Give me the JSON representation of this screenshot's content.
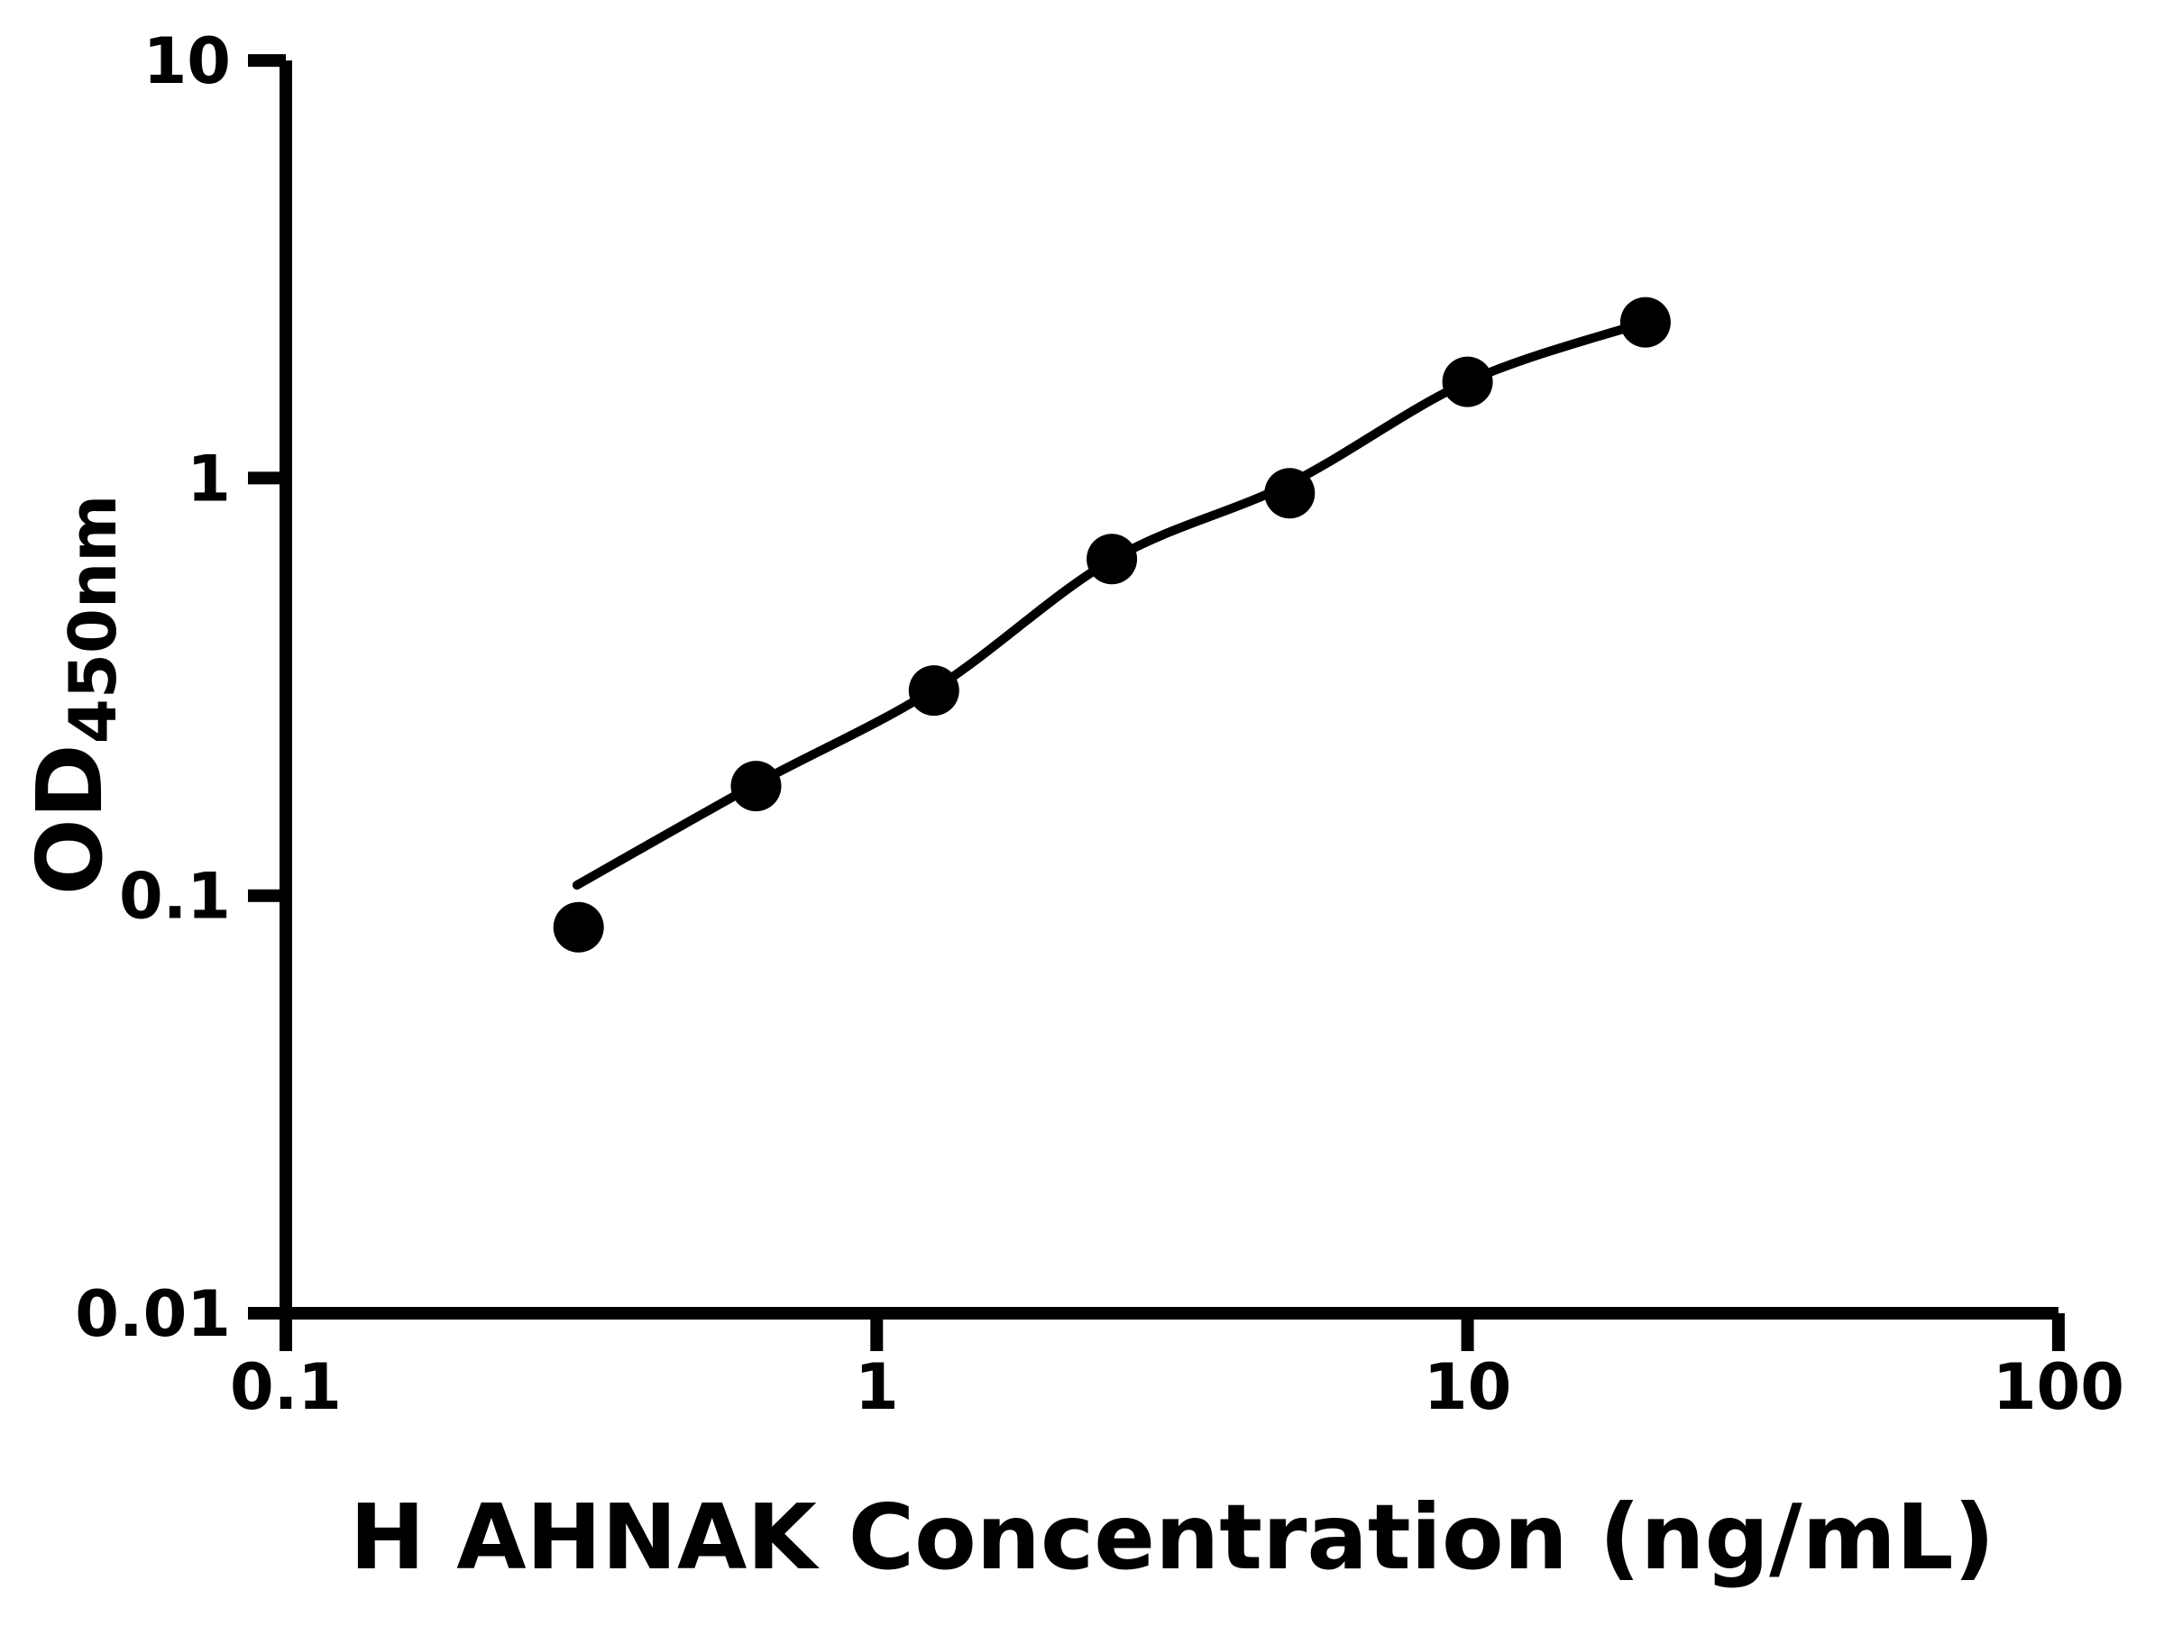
{
  "colors": {
    "foreground": "#000000",
    "background": "#ffffff"
  },
  "chart_data": {
    "type": "scatter",
    "subtype": "log-log standard curve with fitted line",
    "title": "",
    "xlabel": "H AHNAK Concentration (ng/mL)",
    "ylabel_main": "OD",
    "ylabel_sub": "450nm",
    "x_scale": "log",
    "y_scale": "log",
    "xlim": [
      0.1,
      100
    ],
    "ylim": [
      0.01,
      10
    ],
    "grid": false,
    "legend": "none",
    "x_ticks": [
      {
        "value": 0.1,
        "label": "0.1"
      },
      {
        "value": 1,
        "label": "1"
      },
      {
        "value": 10,
        "label": "10"
      },
      {
        "value": 100,
        "label": "100"
      }
    ],
    "y_ticks": [
      {
        "value": 0.01,
        "label": "0.01"
      },
      {
        "value": 0.1,
        "label": "0.1"
      },
      {
        "value": 1,
        "label": "1"
      },
      {
        "value": 10,
        "label": "10"
      }
    ],
    "series": [
      {
        "name": "standard-curve-points",
        "marker": "filled-circle",
        "color": "#000000",
        "points": [
          {
            "x": 0.313,
            "od": 0.084
          },
          {
            "x": 0.625,
            "od": 0.183
          },
          {
            "x": 1.25,
            "od": 0.31
          },
          {
            "x": 2.5,
            "od": 0.64
          },
          {
            "x": 5,
            "od": 0.92
          },
          {
            "x": 10,
            "od": 1.7
          },
          {
            "x": 20,
            "od": 2.36
          }
        ]
      }
    ],
    "fit_curve_anchors": [
      {
        "x": 0.311,
        "od": 0.106
      },
      {
        "x": 0.625,
        "od": 0.185
      },
      {
        "x": 1.25,
        "od": 0.312
      },
      {
        "x": 2.5,
        "od": 0.637
      },
      {
        "x": 5,
        "od": 0.97
      },
      {
        "x": 10,
        "od": 1.701
      },
      {
        "x": 20,
        "od": 2.362
      }
    ]
  }
}
